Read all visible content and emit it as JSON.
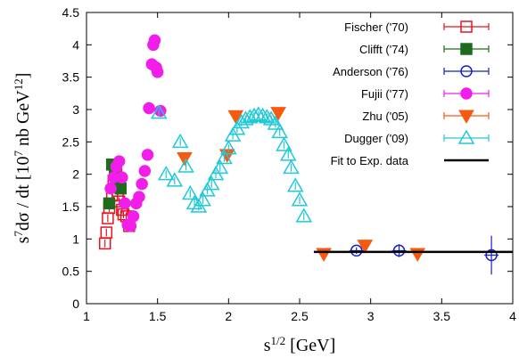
{
  "chart_data": {
    "type": "scatter",
    "xlabel": "s^{1/2}  [GeV]",
    "ylabel": "s^{7}dσ / dt  [10^{7} nb GeV^{12}]",
    "xlim": [
      1,
      4
    ],
    "ylim": [
      0,
      4.5
    ],
    "xticks": [
      "1",
      "1.5",
      "2",
      "2.5",
      "3",
      "3.5",
      "4"
    ],
    "yticks": [
      "0",
      "0.5",
      "1",
      "1.5",
      "2",
      "2.5",
      "3",
      "3.5",
      "4",
      "4.5"
    ],
    "legend_position": "top-right",
    "series": [
      {
        "name": "Fischer ('70)",
        "marker": "open-square",
        "color": "#e8131e",
        "points": [
          [
            1.13,
            0.93
          ],
          [
            1.14,
            1.1
          ],
          [
            1.15,
            1.32
          ],
          [
            1.16,
            1.48
          ],
          [
            1.18,
            1.67
          ],
          [
            1.19,
            1.9
          ],
          [
            1.2,
            2.05
          ],
          [
            1.21,
            2.0
          ],
          [
            1.22,
            1.68
          ],
          [
            1.23,
            1.58
          ],
          [
            1.25,
            1.45
          ],
          [
            1.26,
            1.38
          ],
          [
            1.28,
            1.35
          ],
          [
            1.3,
            1.2
          ]
        ]
      },
      {
        "name": "Clifft ('74)",
        "marker": "filled-square",
        "color": "#1e6b1e",
        "points": [
          [
            1.16,
            1.55
          ],
          [
            1.18,
            2.15
          ],
          [
            1.2,
            2.05
          ],
          [
            1.22,
            1.92
          ],
          [
            1.24,
            1.78
          ]
        ]
      },
      {
        "name": "Anderson ('76)",
        "marker": "open-circle",
        "color": "#1520c8",
        "points": [
          [
            2.9,
            0.82
          ],
          [
            3.2,
            0.82
          ],
          [
            3.85,
            0.75
          ]
        ],
        "errors": [
          0.05,
          0.1,
          0.3
        ]
      },
      {
        "name": "Fujii ('77)",
        "marker": "filled-circle",
        "color": "#f01ee8",
        "points": [
          [
            1.17,
            1.78
          ],
          [
            1.19,
            1.95
          ],
          [
            1.21,
            2.12
          ],
          [
            1.23,
            2.2
          ],
          [
            1.25,
            1.95
          ],
          [
            1.27,
            1.55
          ],
          [
            1.29,
            1.22
          ],
          [
            1.31,
            1.2
          ],
          [
            1.33,
            1.35
          ],
          [
            1.35,
            1.55
          ],
          [
            1.37,
            1.65
          ],
          [
            1.39,
            1.85
          ],
          [
            1.41,
            2.05
          ],
          [
            1.43,
            2.3
          ],
          [
            1.44,
            3.02
          ],
          [
            1.46,
            3.7
          ],
          [
            1.47,
            4.0
          ],
          [
            1.48,
            4.07
          ],
          [
            1.49,
            3.65
          ],
          [
            1.5,
            3.58
          ],
          [
            1.52,
            2.98
          ]
        ]
      },
      {
        "name": "Zhu ('05)",
        "marker": "filled-triangle-down",
        "color": "#f55a10",
        "points": [
          [
            1.69,
            2.25
          ],
          [
            1.99,
            2.3
          ],
          [
            2.05,
            2.9
          ],
          [
            2.35,
            2.95
          ],
          [
            2.67,
            0.77
          ],
          [
            2.96,
            0.9
          ],
          [
            3.33,
            0.77
          ]
        ]
      },
      {
        "name": "Dugger ('09)",
        "marker": "open-triangle-up",
        "color": "#20c8d8",
        "points": [
          [
            1.51,
            2.95
          ],
          [
            1.56,
            2.0
          ],
          [
            1.62,
            1.9
          ],
          [
            1.66,
            2.5
          ],
          [
            1.7,
            2.12
          ],
          [
            1.73,
            1.7
          ],
          [
            1.76,
            1.55
          ],
          [
            1.79,
            1.5
          ],
          [
            1.82,
            1.6
          ],
          [
            1.85,
            1.75
          ],
          [
            1.88,
            1.85
          ],
          [
            1.91,
            2.0
          ],
          [
            1.94,
            2.1
          ],
          [
            1.97,
            2.25
          ],
          [
            2.0,
            2.4
          ],
          [
            2.03,
            2.6
          ],
          [
            2.06,
            2.7
          ],
          [
            2.09,
            2.8
          ],
          [
            2.12,
            2.85
          ],
          [
            2.15,
            2.88
          ],
          [
            2.18,
            2.9
          ],
          [
            2.21,
            2.92
          ],
          [
            2.24,
            2.9
          ],
          [
            2.27,
            2.88
          ],
          [
            2.3,
            2.85
          ],
          [
            2.33,
            2.78
          ],
          [
            2.36,
            2.65
          ],
          [
            2.39,
            2.45
          ],
          [
            2.42,
            2.3
          ],
          [
            2.44,
            2.1
          ],
          [
            2.47,
            1.82
          ],
          [
            2.5,
            1.6
          ],
          [
            2.53,
            1.35
          ]
        ]
      },
      {
        "name": "Fit to Exp. data",
        "marker": "line",
        "color": "#000000",
        "points": [
          [
            2.6,
            0.8
          ],
          [
            4.0,
            0.8
          ]
        ]
      }
    ]
  }
}
